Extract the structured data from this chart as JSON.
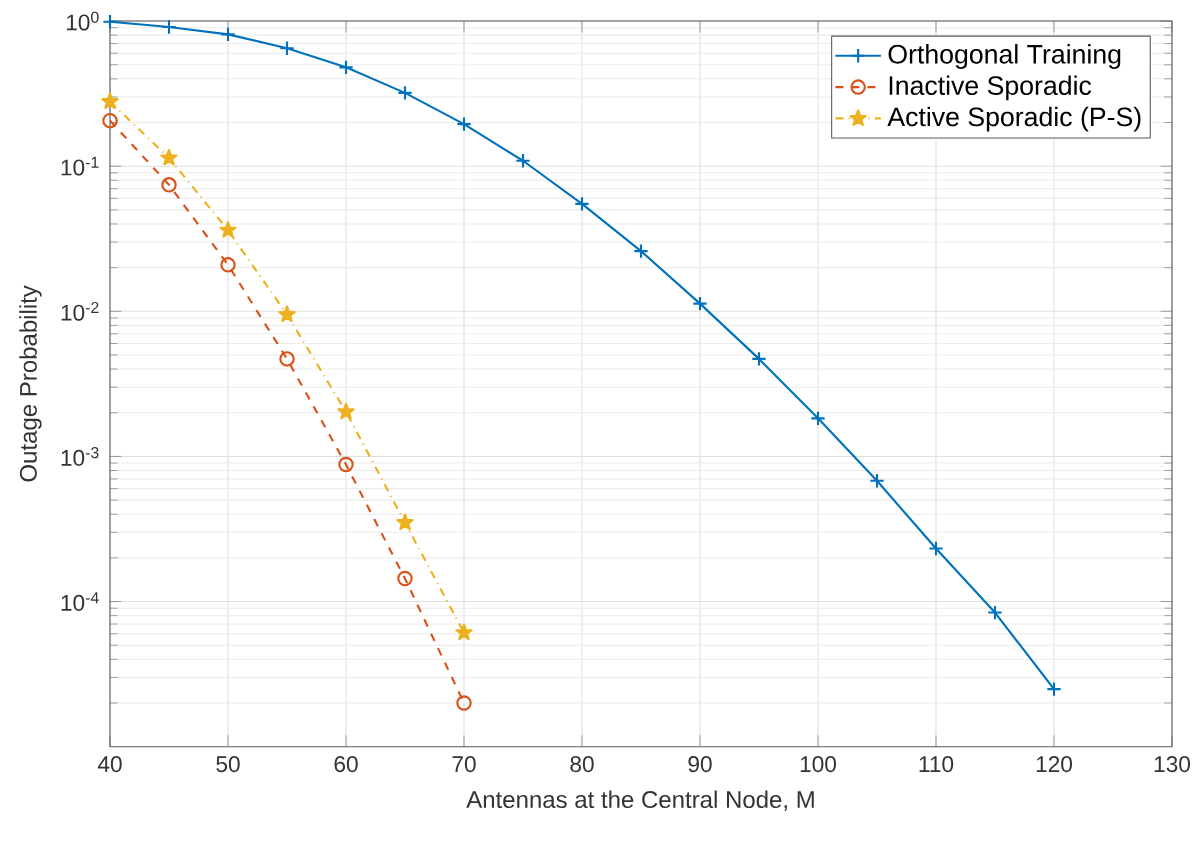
{
  "chart_data": {
    "type": "line",
    "xlabel": "Antennas at the Central Node, M",
    "ylabel": "Outage Probability",
    "x": [
      40,
      45,
      50,
      55,
      60,
      65,
      70,
      75,
      80,
      85,
      90,
      95,
      100,
      105,
      110,
      115,
      120
    ],
    "series": [
      {
        "name": "Orthogonal Training",
        "color": "#0072bd",
        "marker": "cross",
        "line_style": "solid",
        "values": [
          0.99,
          0.91,
          0.81,
          0.65,
          0.48,
          0.32,
          0.195,
          0.109,
          0.055,
          0.026,
          0.0113,
          0.0047,
          0.00183,
          0.00068,
          0.000232,
          8.4e-05,
          2.49e-05
        ]
      },
      {
        "name": "Inactive Sporadic",
        "color": "#d95319",
        "marker": "circle",
        "line_style": "dashed",
        "values": [
          0.206,
          0.0744,
          0.0209,
          0.0047,
          0.00088,
          0.000144,
          2e-05,
          null,
          null,
          null,
          null,
          null,
          null,
          null,
          null,
          null,
          null
        ]
      },
      {
        "name": "Active Sporadic (P-S)",
        "color": "#edb120",
        "marker": "star",
        "line_style": "dotted",
        "values": [
          0.279,
          0.114,
          0.0362,
          0.0095,
          0.00203,
          0.00035,
          6.1e-05,
          null,
          null,
          null,
          null,
          null,
          null,
          null,
          null,
          null,
          null
        ]
      }
    ],
    "log": "y",
    "xlim": [
      40,
      130
    ],
    "ylim": [
      1e-05,
      1
    ],
    "xticks": [
      40,
      50,
      60,
      70,
      80,
      90,
      100,
      110,
      120,
      130
    ],
    "yticks": [
      {
        "value": 1,
        "label": "10$^{0}$"
      },
      {
        "value": 0.1,
        "label": "10$^{-1}$"
      },
      {
        "value": 0.01,
        "label": "10$^{-2}$"
      },
      {
        "value": 0.001,
        "label": "10$^{-3}$"
      },
      {
        "value": 0.0001,
        "label": "10$^{-4}$"
      }
    ],
    "grid": true,
    "legend": "top right"
  }
}
